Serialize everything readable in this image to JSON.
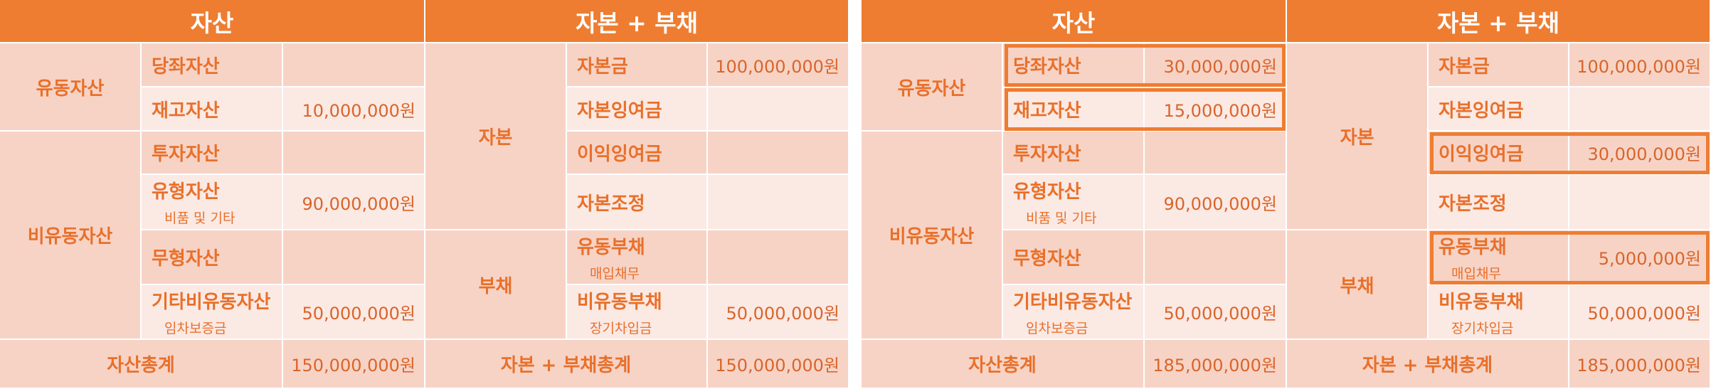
{
  "tables": [
    {
      "headers": {
        "assets": "자산",
        "liabilities_equity": "자본 + 부채"
      },
      "assets": {
        "current_group": "유동자산",
        "noncurrent_group": "비유동자산",
        "rows": [
          {
            "label": "당좌자산",
            "sub": "",
            "value": ""
          },
          {
            "label": "재고자산",
            "sub": "",
            "value": "10,000,000원"
          },
          {
            "label": "투자자산",
            "sub": "",
            "value": ""
          },
          {
            "label": "유형자산",
            "sub": "비품 및 기타",
            "value": "90,000,000원"
          },
          {
            "label": "무형자산",
            "sub": "",
            "value": ""
          },
          {
            "label": "기타비유동자산",
            "sub": "임차보증금",
            "value": "50,000,000원"
          }
        ],
        "total_label": "자산총계",
        "total_value": "150,000,000원"
      },
      "liabilities_equity": {
        "equity_group": "자본",
        "liability_group": "부채",
        "rows": [
          {
            "label": "자본금",
            "sub": "",
            "value": "100,000,000원"
          },
          {
            "label": "자본잉여금",
            "sub": "",
            "value": ""
          },
          {
            "label": "이익잉여금",
            "sub": "",
            "value": ""
          },
          {
            "label": "자본조정",
            "sub": "",
            "value": ""
          },
          {
            "label": "유동부채",
            "sub": "매입채무",
            "value": ""
          },
          {
            "label": "비유동부채",
            "sub": "장기차입금",
            "value": "50,000,000원"
          }
        ],
        "total_label": "자본 + 부채총계",
        "total_value": "150,000,000원"
      }
    },
    {
      "headers": {
        "assets": "자산",
        "liabilities_equity": "자본 + 부채"
      },
      "assets": {
        "current_group": "유동자산",
        "noncurrent_group": "비유동자산",
        "rows": [
          {
            "label": "당좌자산",
            "sub": "",
            "value": "30,000,000원"
          },
          {
            "label": "재고자산",
            "sub": "",
            "value": "15,000,000원"
          },
          {
            "label": "투자자산",
            "sub": "",
            "value": ""
          },
          {
            "label": "유형자산",
            "sub": "비품 및 기타",
            "value": "90,000,000원"
          },
          {
            "label": "무형자산",
            "sub": "",
            "value": ""
          },
          {
            "label": "기타비유동자산",
            "sub": "임차보증금",
            "value": "50,000,000원"
          }
        ],
        "total_label": "자산총계",
        "total_value": "185,000,000원"
      },
      "liabilities_equity": {
        "equity_group": "자본",
        "liability_group": "부채",
        "rows": [
          {
            "label": "자본금",
            "sub": "",
            "value": "100,000,000원"
          },
          {
            "label": "자본잉여금",
            "sub": "",
            "value": ""
          },
          {
            "label": "이익잉여금",
            "sub": "",
            "value": "30,000,000원"
          },
          {
            "label": "자본조정",
            "sub": "",
            "value": ""
          },
          {
            "label": "유동부채",
            "sub": "매입채무",
            "value": "5,000,000원"
          },
          {
            "label": "비유동부채",
            "sub": "장기차입금",
            "value": "50,000,000원"
          }
        ],
        "total_label": "자본 + 부채총계",
        "total_value": "185,000,000원"
      },
      "highlight_color": "#ee7d31",
      "highlighted_items": [
        "당좌자산",
        "재고자산",
        "이익잉여금",
        "유동부채"
      ]
    }
  ],
  "colors": {
    "header": "#ee7d31",
    "dark_cell": "#f7d3c6",
    "light_cell": "#fbe9e4",
    "text": "#e8702a"
  }
}
